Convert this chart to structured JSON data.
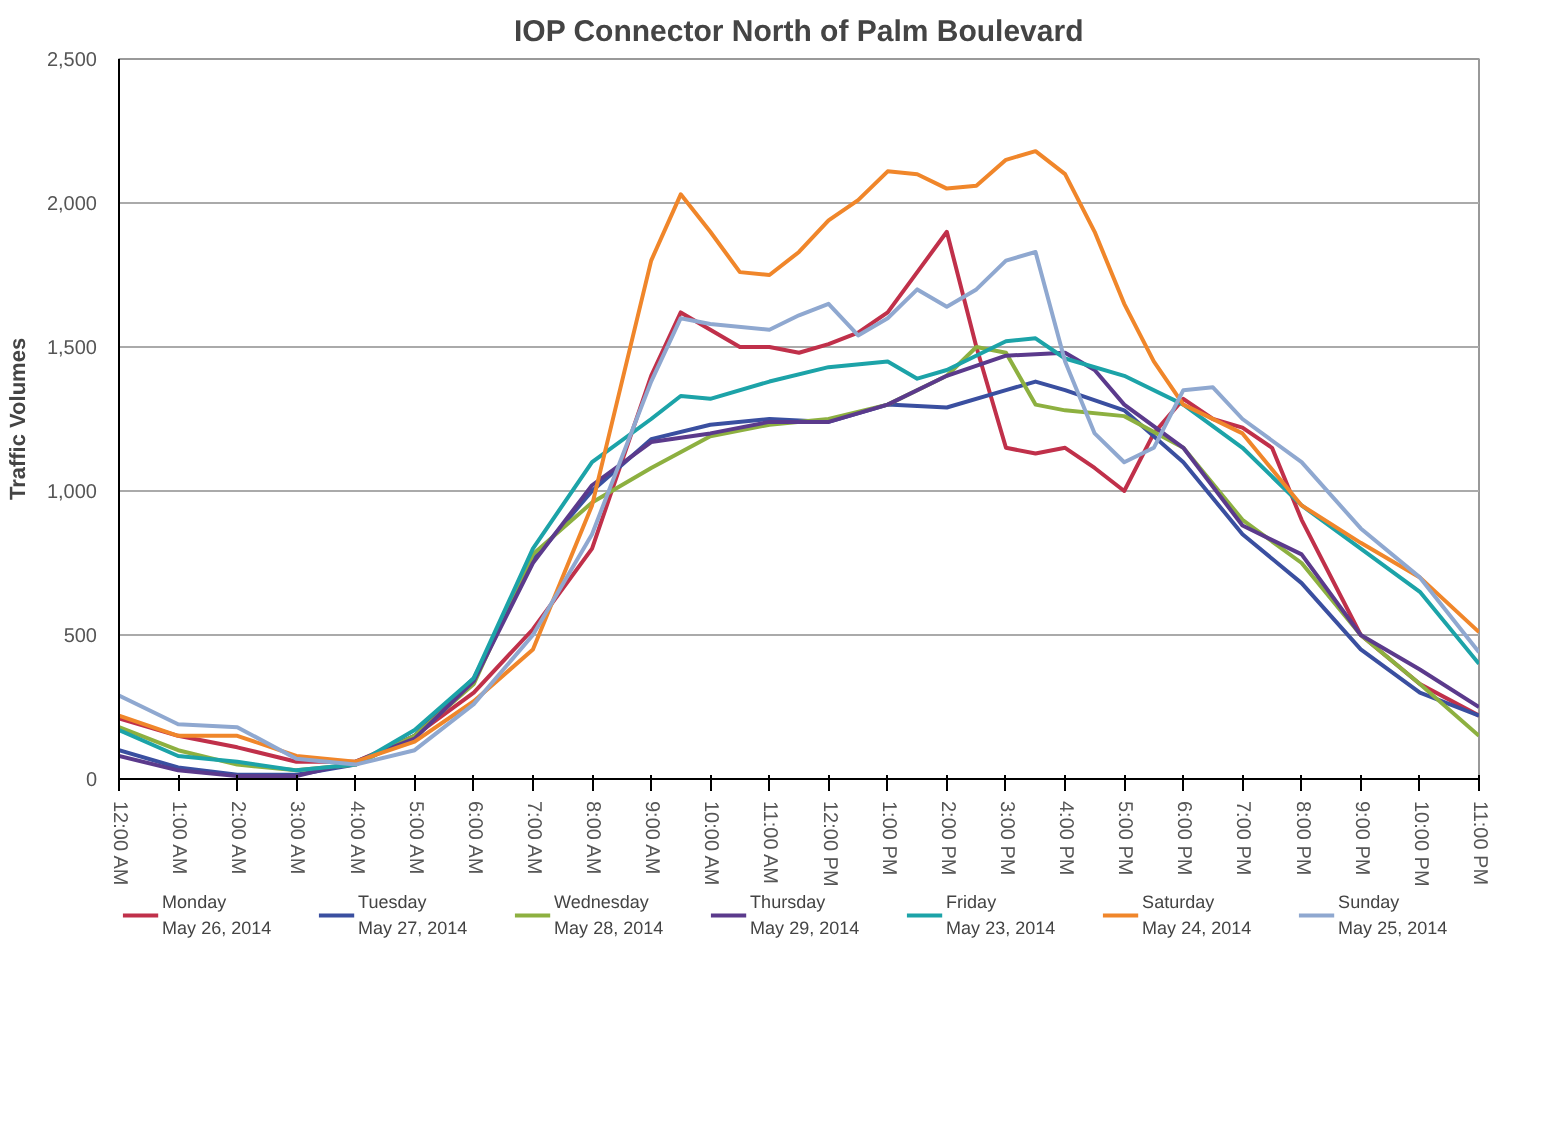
{
  "chart_data": {
    "type": "line",
    "title": "IOP Connector North of Palm Boulevard",
    "ylabel": "Traffic Volumes",
    "xlim": [
      0,
      23
    ],
    "ylim": [
      0,
      2500
    ],
    "xticks": [
      {
        "value": 0,
        "label": "12:00 AM"
      },
      {
        "value": 1,
        "label": "1:00 AM"
      },
      {
        "value": 2,
        "label": "2:00 AM"
      },
      {
        "value": 3,
        "label": "3:00 AM"
      },
      {
        "value": 4,
        "label": "4:00 AM"
      },
      {
        "value": 5,
        "label": "5:00 AM"
      },
      {
        "value": 6,
        "label": "6:00 AM"
      },
      {
        "value": 7,
        "label": "7:00 AM"
      },
      {
        "value": 8,
        "label": "8:00 AM"
      },
      {
        "value": 9,
        "label": "9:00 AM"
      },
      {
        "value": 10,
        "label": "10:00 AM"
      },
      {
        "value": 11,
        "label": "11:00 AM"
      },
      {
        "value": 12,
        "label": "12:00 PM"
      },
      {
        "value": 13,
        "label": "1:00 PM"
      },
      {
        "value": 14,
        "label": "2:00 PM"
      },
      {
        "value": 15,
        "label": "3:00 PM"
      },
      {
        "value": 16,
        "label": "4:00 PM"
      },
      {
        "value": 17,
        "label": "5:00 PM"
      },
      {
        "value": 18,
        "label": "6:00 PM"
      },
      {
        "value": 19,
        "label": "7:00 PM"
      },
      {
        "value": 20,
        "label": "8:00 PM"
      },
      {
        "value": 21,
        "label": "9:00 PM"
      },
      {
        "value": 22,
        "label": "10:00 PM"
      },
      {
        "value": 23,
        "label": "11:00 PM"
      }
    ],
    "yticks": [
      0,
      500,
      {
        "value": 1000,
        "label": "1,000"
      },
      {
        "value": 1500,
        "label": "1,500"
      },
      {
        "value": 2000,
        "label": "2,000"
      },
      {
        "value": 2500,
        "label": "2,500"
      }
    ],
    "grid": "y",
    "legend": "bottom",
    "line_style": "solid",
    "series": [
      {
        "name": "Monday\nMay 26, 2014",
        "color": "#c0304a",
        "x": [
          0,
          1,
          2,
          3,
          4,
          5,
          6,
          7,
          8,
          9,
          9.5,
          10,
          10.5,
          11,
          11.5,
          12,
          12.5,
          13,
          13.5,
          14,
          14.5,
          15,
          15.5,
          16,
          16.5,
          17,
          17.5,
          18,
          18.5,
          19,
          19.5,
          20,
          21,
          22,
          23
        ],
        "values": [
          210,
          150,
          110,
          60,
          60,
          150,
          300,
          520,
          800,
          1400,
          1620,
          1560,
          1500,
          1500,
          1480,
          1510,
          1550,
          1620,
          1760,
          1900,
          1500,
          1150,
          1130,
          1150,
          1080,
          1000,
          1200,
          1320,
          1250,
          1220,
          1150,
          900,
          500,
          330,
          220
        ]
      },
      {
        "name": "Tuesday\nMay 27, 2014",
        "color": "#3a4fa0",
        "x": [
          0,
          1,
          2,
          3,
          4,
          5,
          6,
          7,
          8,
          9,
          10,
          11,
          12,
          13,
          14,
          15,
          15.5,
          16,
          17,
          18,
          19,
          20,
          21,
          22,
          23
        ],
        "values": [
          100,
          40,
          15,
          15,
          50,
          150,
          350,
          760,
          1000,
          1180,
          1230,
          1250,
          1240,
          1300,
          1290,
          1350,
          1380,
          1350,
          1280,
          1100,
          850,
          680,
          450,
          300,
          220
        ]
      },
      {
        "name": "Wednesday\nMay 28, 2014",
        "color": "#8db040",
        "x": [
          0,
          1,
          2,
          3,
          4,
          5,
          6,
          7,
          8,
          9,
          10,
          11,
          12,
          13,
          14,
          14.5,
          15,
          15.5,
          16,
          17,
          18,
          19,
          20,
          21,
          22,
          23
        ],
        "values": [
          180,
          100,
          50,
          30,
          50,
          150,
          330,
          780,
          960,
          1080,
          1190,
          1230,
          1250,
          1300,
          1400,
          1500,
          1480,
          1300,
          1280,
          1260,
          1150,
          900,
          750,
          500,
          330,
          150
        ]
      },
      {
        "name": "Thursday\nMay 29, 2014",
        "color": "#5b3a8c",
        "x": [
          0,
          1,
          2,
          3,
          4,
          5,
          6,
          7,
          8,
          9,
          10,
          11,
          12,
          13,
          14,
          15,
          16,
          16.5,
          17,
          18,
          19,
          20,
          21,
          22,
          23
        ],
        "values": [
          80,
          30,
          10,
          10,
          60,
          140,
          340,
          750,
          1020,
          1170,
          1200,
          1240,
          1240,
          1300,
          1400,
          1470,
          1480,
          1420,
          1300,
          1150,
          880,
          780,
          500,
          380,
          250
        ]
      },
      {
        "name": "Friday\nMay 23, 2014",
        "color": "#1ca3a8",
        "x": [
          0,
          1,
          2,
          3,
          4,
          5,
          6,
          7,
          8,
          9,
          9.5,
          10,
          11,
          12,
          13,
          13.5,
          14,
          15,
          15.5,
          16,
          17,
          18,
          19,
          20,
          21,
          22,
          23
        ],
        "values": [
          170,
          80,
          60,
          30,
          50,
          170,
          350,
          800,
          1100,
          1250,
          1330,
          1320,
          1380,
          1430,
          1450,
          1390,
          1420,
          1520,
          1530,
          1460,
          1400,
          1300,
          1150,
          950,
          800,
          650,
          400
        ]
      },
      {
        "name": "Saturday\nMay 24, 2014",
        "color": "#f0862a",
        "x": [
          0,
          1,
          2,
          3,
          4,
          5,
          6,
          7,
          8,
          9,
          9.5,
          10,
          10.5,
          11,
          11.5,
          12,
          12.5,
          13,
          13.5,
          14,
          14.5,
          15,
          15.5,
          16,
          16.5,
          17,
          17.5,
          18,
          19,
          20,
          21,
          22,
          23
        ],
        "values": [
          220,
          150,
          150,
          80,
          60,
          130,
          270,
          450,
          950,
          1800,
          2030,
          1900,
          1760,
          1750,
          1830,
          1940,
          2010,
          2110,
          2100,
          2050,
          2060,
          2150,
          2180,
          2100,
          1900,
          1650,
          1450,
          1300,
          1200,
          950,
          820,
          700,
          510
        ]
      },
      {
        "name": "Sunday\nMay 25, 2014",
        "color": "#8fa8d0",
        "x": [
          0,
          1,
          2,
          3,
          4,
          5,
          6,
          7,
          8,
          9,
          9.5,
          10,
          11,
          11.5,
          12,
          12.5,
          13,
          13.5,
          14,
          14.5,
          15,
          15.5,
          16,
          16.5,
          17,
          17.5,
          18,
          18.5,
          19,
          20,
          21,
          22,
          23
        ],
        "values": [
          290,
          190,
          180,
          70,
          50,
          100,
          260,
          500,
          850,
          1380,
          1600,
          1580,
          1560,
          1610,
          1650,
          1540,
          1600,
          1700,
          1640,
          1700,
          1800,
          1830,
          1450,
          1200,
          1100,
          1150,
          1350,
          1360,
          1250,
          1100,
          870,
          700,
          440
        ]
      }
    ]
  }
}
